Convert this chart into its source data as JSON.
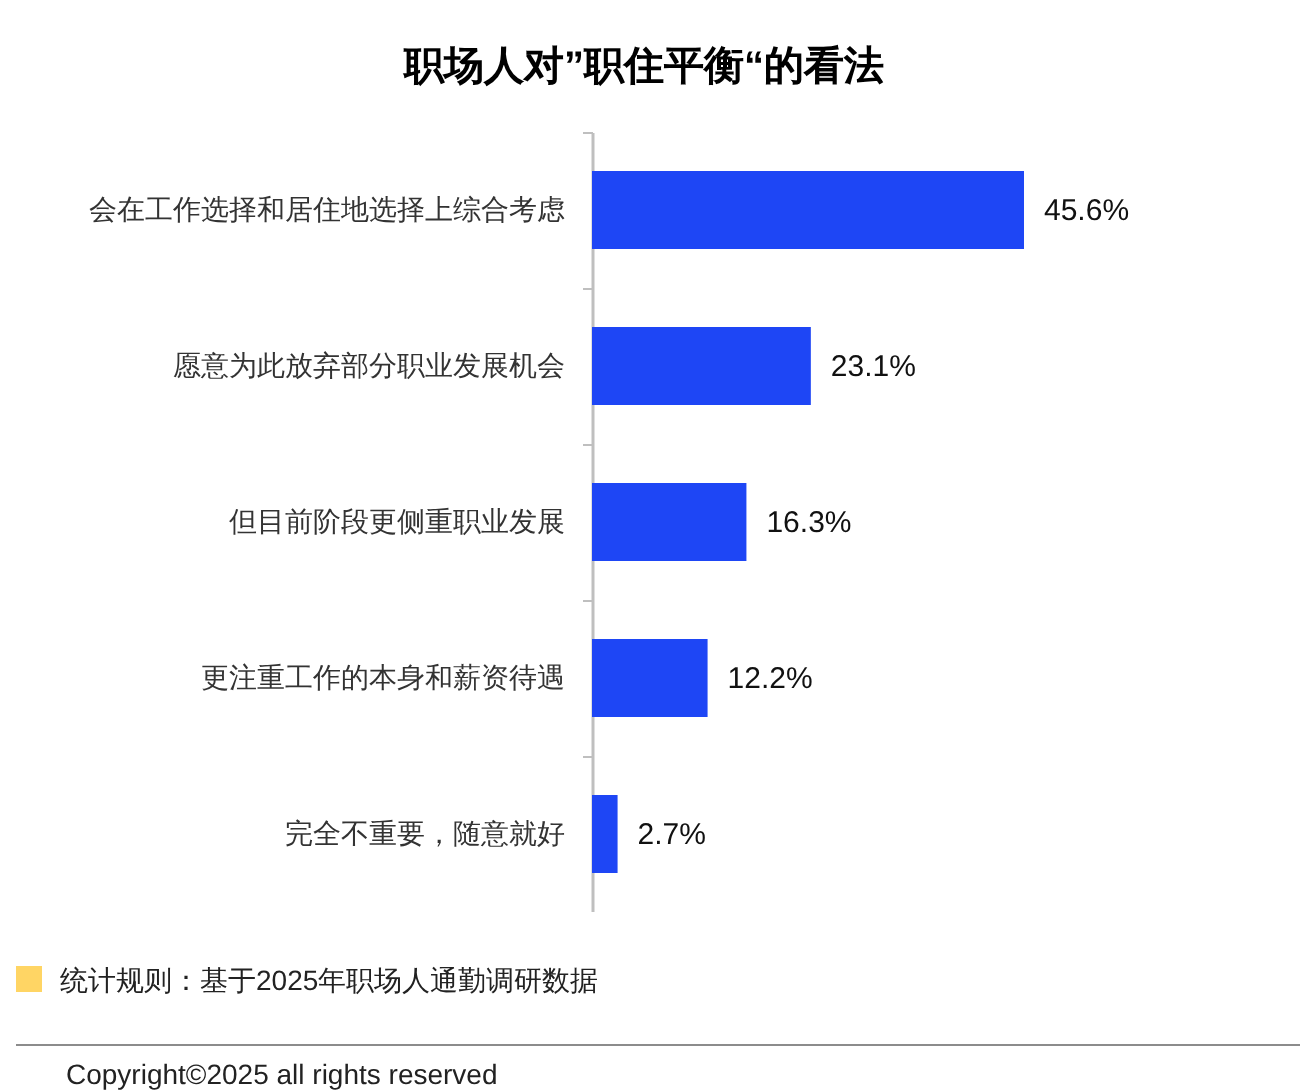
{
  "chart_data": {
    "type": "bar",
    "orientation": "horizontal",
    "title": "职场人对”职住平衡“的看法",
    "categories": [
      "会在工作选择和居住地选择上综合考虑",
      "愿意为此放弃部分职业发展机会",
      "但目前阶段更侧重职业发展",
      "更注重工作的本身和薪资待遇",
      "完全不重要，随意就好"
    ],
    "values": [
      45.6,
      23.1,
      16.3,
      12.2,
      2.7
    ],
    "value_labels": [
      "45.6%",
      "23.1%",
      "16.3%",
      "12.2%",
      "2.7%"
    ],
    "color": "#1e46f5",
    "tick_labels": "y",
    "annotations": [
      "统计规则：基于2025年职场人通勤调研数据",
      "Copyright©2025 all rights reserved"
    ]
  }
}
